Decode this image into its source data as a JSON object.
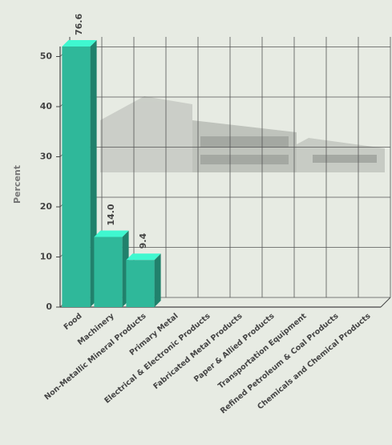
{
  "chart_data": {
    "type": "bar3d",
    "y_label": "Percent",
    "categories": [
      "Food",
      "Machinery",
      "Non-Metallic Mineral Products",
      "Primary Metal",
      "Electrical & Electronic Products",
      "Fabricated Metal Products",
      "Paper & Allied Products",
      "Transportation Equipment",
      "Refined Petroleum & Coal Products",
      "Chemicals and Chemical Products"
    ],
    "values": [
      76.6,
      14.0,
      9.4,
      0,
      0,
      0,
      0,
      0,
      0,
      0
    ],
    "value_labels": [
      "76.6",
      "14.0",
      "9.4",
      null,
      null,
      null,
      null,
      null,
      null,
      null
    ],
    "color": "#2fb89a",
    "ylim": [
      0,
      52
    ],
    "yticks": [
      0,
      10,
      20,
      30,
      40,
      50
    ],
    "grid": true
  }
}
